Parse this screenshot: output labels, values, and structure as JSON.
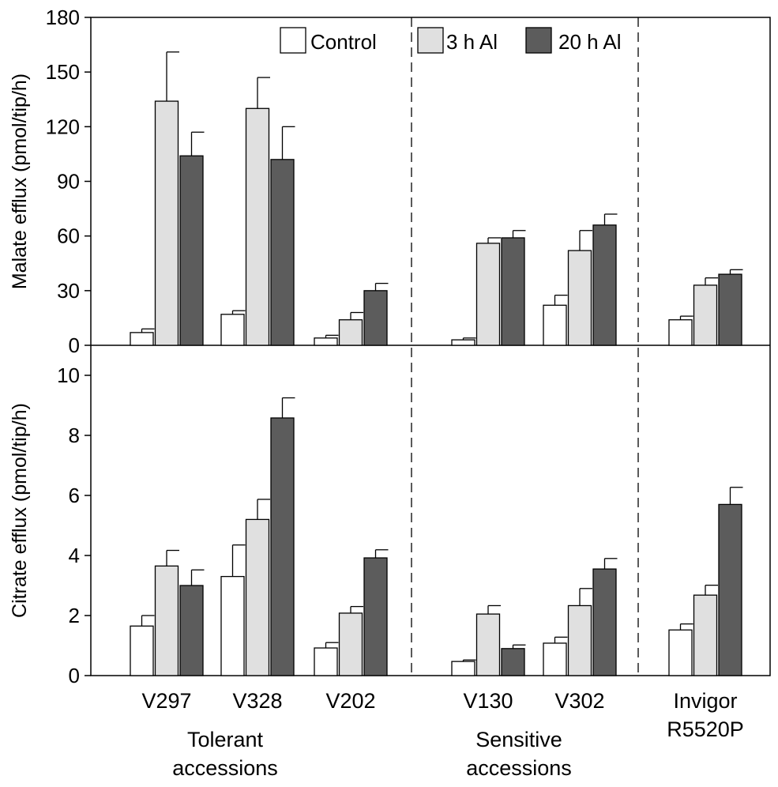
{
  "chart_data": {
    "type": "bar",
    "categories": [
      "V297",
      "V328",
      "V202",
      "V130",
      "V302",
      "Invigor R5520P"
    ],
    "category_labels": [
      [
        "V297"
      ],
      [
        "V328"
      ],
      [
        "V202"
      ],
      [
        "V130"
      ],
      [
        "V302"
      ],
      [
        "Invigor",
        "R5520P"
      ]
    ],
    "legend": {
      "position": "top",
      "entries": [
        "Control",
        "3 h Al",
        "20 h Al"
      ]
    },
    "series_colors": [
      "#ffffff",
      "#e0e0e0",
      "#5c5c5c"
    ],
    "group_labels": [
      {
        "lines": [
          "Tolerant",
          "accessions"
        ]
      },
      {
        "lines": [
          "Sensitive",
          "accessions"
        ]
      }
    ],
    "panels": [
      {
        "ylabel": "Malate efflux (pmol/tip/h)",
        "ylim": [
          0,
          180
        ],
        "yticks": [
          0,
          30,
          60,
          90,
          120,
          150,
          180
        ],
        "series": [
          {
            "name": "Control",
            "values": [
              7,
              17,
              4,
              3,
              22,
              14
            ],
            "errors": [
              2,
              2,
              1.5,
              1,
              5.5,
              2
            ]
          },
          {
            "name": "3 h Al",
            "values": [
              134,
              130,
              14,
              56,
              52,
              33
            ],
            "errors": [
              27,
              17,
              4,
              3,
              11,
              4
            ]
          },
          {
            "name": "20 h Al",
            "values": [
              104,
              102,
              30,
              59,
              66,
              39
            ],
            "errors": [
              13,
              18,
              4,
              4,
              6,
              2.5
            ]
          }
        ]
      },
      {
        "ylabel": "Citrate efflux (pmol/tip/h)",
        "ylim": [
          0,
          11
        ],
        "yticks": [
          0,
          2,
          4,
          6,
          8,
          10
        ],
        "series": [
          {
            "name": "Control",
            "values": [
              1.65,
              3.3,
              0.92,
              0.47,
              1.08,
              1.52
            ],
            "errors": [
              0.35,
              1.05,
              0.18,
              0.05,
              0.2,
              0.2
            ]
          },
          {
            "name": "3 h Al",
            "values": [
              3.65,
              5.2,
              2.08,
              2.05,
              2.33,
              2.68
            ],
            "errors": [
              0.52,
              0.67,
              0.22,
              0.28,
              0.57,
              0.33
            ]
          },
          {
            "name": "20 h Al",
            "values": [
              3.0,
              8.58,
              3.92,
              0.9,
              3.55,
              5.7
            ],
            "errors": [
              0.52,
              0.67,
              0.27,
              0.12,
              0.35,
              0.57
            ]
          }
        ]
      }
    ]
  }
}
